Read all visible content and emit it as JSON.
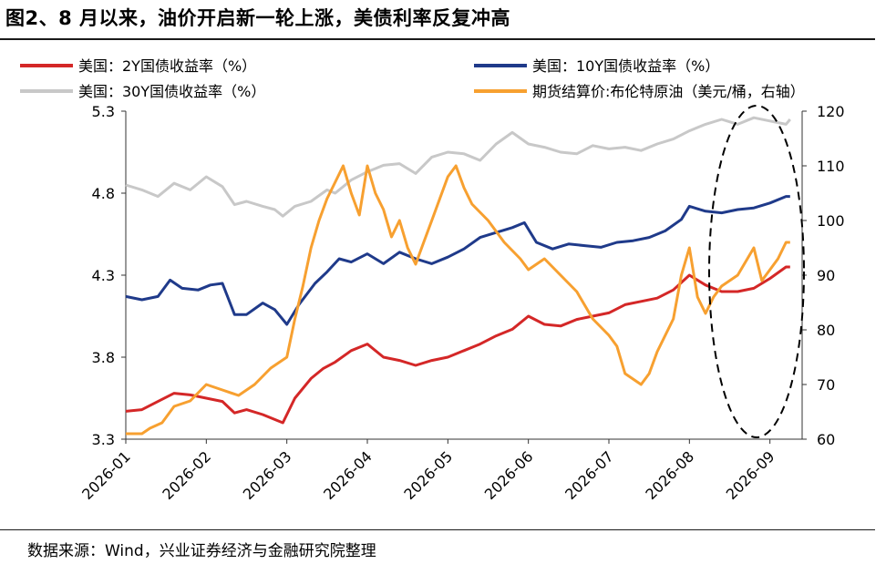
{
  "title": "图2、8 月以来，油价开启新一轮上涨，美债利率反复冲高",
  "source": "数据来源：Wind，兴业证券经济与金融研究院整理",
  "chart_data": {
    "type": "line",
    "xlabel": "",
    "ylabel_left": "",
    "ylabel_right": "",
    "ylim_left": [
      3.3,
      5.3
    ],
    "yticks_left": [
      "3.3",
      "3.8",
      "4.3",
      "4.8",
      "5.3"
    ],
    "ylim_right": [
      60,
      120
    ],
    "yticks_right": [
      "60",
      "70",
      "80",
      "90",
      "100",
      "110",
      "120"
    ],
    "x_range": [
      0,
      8.4
    ],
    "x_ticks": [
      {
        "x": 0,
        "label": "2026-01"
      },
      {
        "x": 1,
        "label": "2026-02"
      },
      {
        "x": 2,
        "label": "2026-03"
      },
      {
        "x": 3,
        "label": "2026-04"
      },
      {
        "x": 4,
        "label": "2026-05"
      },
      {
        "x": 5,
        "label": "2026-06"
      },
      {
        "x": 6,
        "label": "2026-07"
      },
      {
        "x": 7,
        "label": "2026-08"
      },
      {
        "x": 8,
        "label": "2026-09"
      }
    ],
    "legend": "top",
    "annotation": "dashed ellipse around August–September",
    "series": [
      {
        "name": "美国：30Y国债收益率（%）",
        "axis": "left",
        "color": "#c8c8c8",
        "points": [
          [
            0,
            4.85
          ],
          [
            0.2,
            4.82
          ],
          [
            0.4,
            4.78
          ],
          [
            0.6,
            4.86
          ],
          [
            0.8,
            4.82
          ],
          [
            1.0,
            4.9
          ],
          [
            1.2,
            4.84
          ],
          [
            1.35,
            4.73
          ],
          [
            1.5,
            4.75
          ],
          [
            1.7,
            4.72
          ],
          [
            1.85,
            4.7
          ],
          [
            1.95,
            4.66
          ],
          [
            2.1,
            4.72
          ],
          [
            2.3,
            4.75
          ],
          [
            2.5,
            4.82
          ],
          [
            2.6,
            4.8
          ],
          [
            2.8,
            4.88
          ],
          [
            3.0,
            4.93
          ],
          [
            3.2,
            4.97
          ],
          [
            3.4,
            4.98
          ],
          [
            3.6,
            4.92
          ],
          [
            3.8,
            5.02
          ],
          [
            4.0,
            5.05
          ],
          [
            4.2,
            5.04
          ],
          [
            4.4,
            5.0
          ],
          [
            4.6,
            5.1
          ],
          [
            4.8,
            5.17
          ],
          [
            5.0,
            5.1
          ],
          [
            5.2,
            5.08
          ],
          [
            5.4,
            5.05
          ],
          [
            5.6,
            5.04
          ],
          [
            5.8,
            5.09
          ],
          [
            6.0,
            5.07
          ],
          [
            6.2,
            5.08
          ],
          [
            6.4,
            5.06
          ],
          [
            6.6,
            5.1
          ],
          [
            6.8,
            5.13
          ],
          [
            7.0,
            5.18
          ],
          [
            7.2,
            5.22
          ],
          [
            7.4,
            5.25
          ],
          [
            7.6,
            5.22
          ],
          [
            7.8,
            5.26
          ],
          [
            8.0,
            5.24
          ],
          [
            8.2,
            5.22
          ],
          [
            8.25,
            5.25
          ]
        ]
      },
      {
        "name": "美国：10Y国债收益率（%）",
        "axis": "left",
        "color": "#1f3a8a",
        "points": [
          [
            0,
            4.17
          ],
          [
            0.2,
            4.15
          ],
          [
            0.4,
            4.17
          ],
          [
            0.55,
            4.27
          ],
          [
            0.7,
            4.22
          ],
          [
            0.9,
            4.21
          ],
          [
            1.05,
            4.24
          ],
          [
            1.2,
            4.25
          ],
          [
            1.35,
            4.06
          ],
          [
            1.5,
            4.06
          ],
          [
            1.7,
            4.13
          ],
          [
            1.85,
            4.09
          ],
          [
            2.0,
            4.0
          ],
          [
            2.15,
            4.12
          ],
          [
            2.35,
            4.25
          ],
          [
            2.5,
            4.32
          ],
          [
            2.65,
            4.4
          ],
          [
            2.8,
            4.38
          ],
          [
            3.0,
            4.43
          ],
          [
            3.2,
            4.37
          ],
          [
            3.4,
            4.44
          ],
          [
            3.6,
            4.4
          ],
          [
            3.8,
            4.37
          ],
          [
            4.0,
            4.41
          ],
          [
            4.2,
            4.46
          ],
          [
            4.4,
            4.53
          ],
          [
            4.6,
            4.56
          ],
          [
            4.8,
            4.59
          ],
          [
            4.95,
            4.62
          ],
          [
            5.1,
            4.5
          ],
          [
            5.3,
            4.46
          ],
          [
            5.5,
            4.49
          ],
          [
            5.7,
            4.48
          ],
          [
            5.9,
            4.47
          ],
          [
            6.1,
            4.5
          ],
          [
            6.3,
            4.51
          ],
          [
            6.5,
            4.53
          ],
          [
            6.7,
            4.57
          ],
          [
            6.9,
            4.64
          ],
          [
            7.0,
            4.72
          ],
          [
            7.2,
            4.69
          ],
          [
            7.4,
            4.68
          ],
          [
            7.6,
            4.7
          ],
          [
            7.8,
            4.71
          ],
          [
            8.0,
            4.74
          ],
          [
            8.2,
            4.78
          ],
          [
            8.25,
            4.78
          ]
        ]
      },
      {
        "name": "美国：2Y国债收益率（%）",
        "axis": "left",
        "color": "#d42727",
        "points": [
          [
            0,
            3.47
          ],
          [
            0.2,
            3.48
          ],
          [
            0.4,
            3.53
          ],
          [
            0.6,
            3.58
          ],
          [
            0.8,
            3.57
          ],
          [
            1.0,
            3.55
          ],
          [
            1.2,
            3.53
          ],
          [
            1.35,
            3.46
          ],
          [
            1.5,
            3.48
          ],
          [
            1.7,
            3.45
          ],
          [
            1.85,
            3.42
          ],
          [
            1.95,
            3.4
          ],
          [
            2.1,
            3.55
          ],
          [
            2.3,
            3.67
          ],
          [
            2.45,
            3.73
          ],
          [
            2.6,
            3.77
          ],
          [
            2.8,
            3.84
          ],
          [
            3.0,
            3.88
          ],
          [
            3.2,
            3.8
          ],
          [
            3.4,
            3.78
          ],
          [
            3.6,
            3.75
          ],
          [
            3.8,
            3.78
          ],
          [
            4.0,
            3.8
          ],
          [
            4.2,
            3.84
          ],
          [
            4.4,
            3.88
          ],
          [
            4.6,
            3.93
          ],
          [
            4.8,
            3.97
          ],
          [
            5.0,
            4.05
          ],
          [
            5.2,
            4.0
          ],
          [
            5.4,
            3.99
          ],
          [
            5.6,
            4.03
          ],
          [
            5.8,
            4.05
          ],
          [
            6.0,
            4.07
          ],
          [
            6.2,
            4.12
          ],
          [
            6.4,
            4.14
          ],
          [
            6.6,
            4.16
          ],
          [
            6.8,
            4.21
          ],
          [
            7.0,
            4.3
          ],
          [
            7.2,
            4.24
          ],
          [
            7.4,
            4.2
          ],
          [
            7.6,
            4.2
          ],
          [
            7.8,
            4.22
          ],
          [
            8.0,
            4.28
          ],
          [
            8.2,
            4.35
          ],
          [
            8.25,
            4.35
          ]
        ]
      },
      {
        "name": "期货结算价:布伦特原油（美元/桶，右轴）",
        "axis": "right",
        "color": "#f7a030",
        "points": [
          [
            0,
            61
          ],
          [
            0.2,
            61
          ],
          [
            0.3,
            62
          ],
          [
            0.45,
            63
          ],
          [
            0.6,
            66
          ],
          [
            0.8,
            67
          ],
          [
            1.0,
            70
          ],
          [
            1.2,
            69
          ],
          [
            1.4,
            68
          ],
          [
            1.6,
            70
          ],
          [
            1.8,
            73
          ],
          [
            2.0,
            75
          ],
          [
            2.1,
            82
          ],
          [
            2.2,
            88
          ],
          [
            2.3,
            95
          ],
          [
            2.4,
            100
          ],
          [
            2.5,
            104
          ],
          [
            2.6,
            107
          ],
          [
            2.7,
            110
          ],
          [
            2.8,
            105
          ],
          [
            2.9,
            101
          ],
          [
            3.0,
            110
          ],
          [
            3.1,
            105
          ],
          [
            3.2,
            102
          ],
          [
            3.3,
            97
          ],
          [
            3.4,
            100
          ],
          [
            3.5,
            95
          ],
          [
            3.6,
            92
          ],
          [
            3.7,
            96
          ],
          [
            3.8,
            100
          ],
          [
            3.9,
            104
          ],
          [
            4.0,
            108
          ],
          [
            4.1,
            110
          ],
          [
            4.2,
            106
          ],
          [
            4.3,
            103
          ],
          [
            4.5,
            100
          ],
          [
            4.7,
            96
          ],
          [
            4.9,
            93
          ],
          [
            5.0,
            91
          ],
          [
            5.2,
            93
          ],
          [
            5.4,
            90
          ],
          [
            5.6,
            87
          ],
          [
            5.8,
            82
          ],
          [
            6.0,
            79
          ],
          [
            6.1,
            77
          ],
          [
            6.2,
            72
          ],
          [
            6.3,
            71
          ],
          [
            6.4,
            70
          ],
          [
            6.5,
            72
          ],
          [
            6.6,
            76
          ],
          [
            6.8,
            82
          ],
          [
            6.9,
            90
          ],
          [
            7.0,
            95
          ],
          [
            7.1,
            86
          ],
          [
            7.2,
            83
          ],
          [
            7.3,
            86
          ],
          [
            7.4,
            88
          ],
          [
            7.6,
            90
          ],
          [
            7.8,
            95
          ],
          [
            7.9,
            89
          ],
          [
            8.0,
            91
          ],
          [
            8.1,
            93
          ],
          [
            8.2,
            96
          ],
          [
            8.25,
            96
          ]
        ]
      }
    ]
  }
}
